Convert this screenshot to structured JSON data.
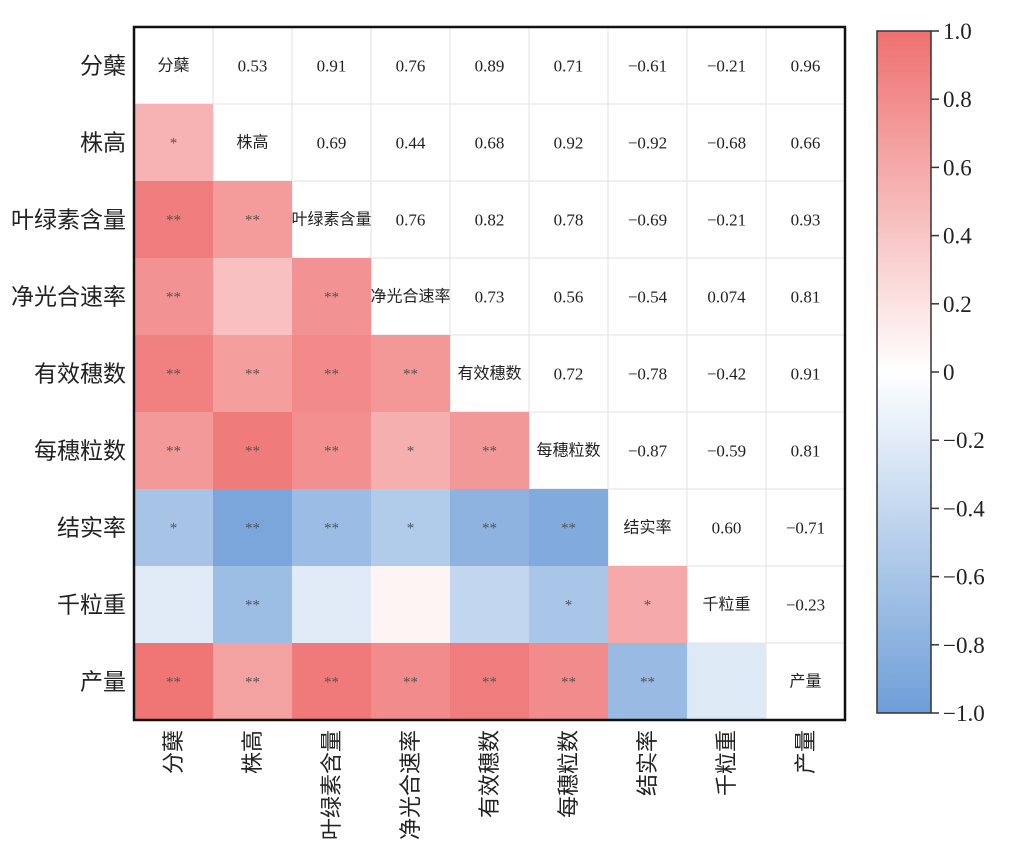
{
  "chart_data": {
    "type": "heatmap",
    "title": "",
    "variables": [
      "分蘖",
      "株高",
      "叶绿素含量",
      "净光合速率",
      "有效穗数",
      "每穗粒数",
      "结实率",
      "千粒重",
      "产量"
    ],
    "upper_value_labels": [
      [
        null,
        "0.53",
        "0.91",
        "0.76",
        "0.89",
        "0.71",
        "−0.61",
        "−0.21",
        "0.96"
      ],
      [
        null,
        null,
        "0.69",
        "0.44",
        "0.68",
        "0.92",
        "−0.92",
        "−0.68",
        "0.66"
      ],
      [
        null,
        null,
        null,
        "0.76",
        "0.82",
        "0.78",
        "−0.69",
        "−0.21",
        "0.93"
      ],
      [
        null,
        null,
        null,
        null,
        "0.73",
        "0.56",
        "−0.54",
        "0.074",
        "0.81"
      ],
      [
        null,
        null,
        null,
        null,
        null,
        "0.72",
        "−0.78",
        "−0.42",
        "0.91"
      ],
      [
        null,
        null,
        null,
        null,
        null,
        null,
        "−0.87",
        "−0.59",
        "0.81"
      ],
      [
        null,
        null,
        null,
        null,
        null,
        null,
        null,
        "0.60",
        "−0.71"
      ],
      [
        null,
        null,
        null,
        null,
        null,
        null,
        null,
        null,
        "−0.23"
      ],
      [
        null,
        null,
        null,
        null,
        null,
        null,
        null,
        null,
        null
      ]
    ],
    "lower_significance": [
      [
        null,
        null,
        null,
        null,
        null,
        null,
        null,
        null,
        null
      ],
      [
        "*",
        null,
        null,
        null,
        null,
        null,
        null,
        null,
        null
      ],
      [
        "**",
        "**",
        null,
        null,
        null,
        null,
        null,
        null,
        null
      ],
      [
        "**",
        "",
        "**",
        null,
        null,
        null,
        null,
        null,
        null
      ],
      [
        "**",
        "**",
        "**",
        "**",
        null,
        null,
        null,
        null,
        null
      ],
      [
        "**",
        "**",
        "**",
        "*",
        "**",
        null,
        null,
        null,
        null
      ],
      [
        "*",
        "**",
        "**",
        "*",
        "**",
        "**",
        null,
        null,
        null
      ],
      [
        "",
        "**",
        "",
        "",
        "",
        "*",
        "*",
        null,
        null
      ],
      [
        "**",
        "**",
        "**",
        "**",
        "**",
        "**",
        "**",
        "",
        null
      ]
    ],
    "colorbar": {
      "range": [
        -1.0,
        1.0
      ],
      "ticks": [
        1.0,
        0.8,
        0.6,
        0.4,
        0.2,
        0,
        -0.2,
        -0.4,
        -0.6,
        -0.8,
        -1.0
      ],
      "tick_labels": [
        "1.0",
        "0.8",
        "0.6",
        "0.4",
        "0.2",
        "0",
        "−0.2",
        "−0.4",
        "−0.6",
        "−0.8",
        "−1.0"
      ],
      "color_high": "#ef7070",
      "color_mid": "#ffffff",
      "color_low": "#6e9ed8"
    }
  }
}
